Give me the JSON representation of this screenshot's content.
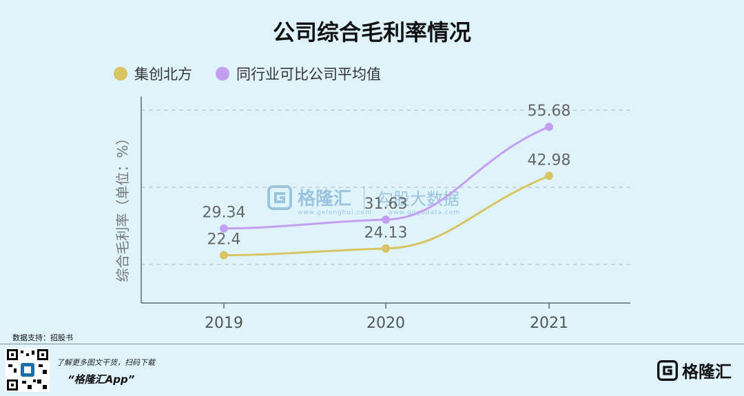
{
  "title": "公司综合毛利率情况",
  "legend": {
    "series1": "集创北方",
    "series2": "同行业可比公司平均值"
  },
  "colors": {
    "series1": "#d9c463",
    "series2": "#c49ef0",
    "grid": "#b7c3cc",
    "axis": "#7a8a96"
  },
  "chart_data": {
    "type": "line",
    "x": [
      "2019",
      "2020",
      "2021"
    ],
    "ylabel": "综合毛利率（单位：%）",
    "ylim": [
      10,
      60
    ],
    "grid": true,
    "legend_position": "top-left",
    "series": [
      {
        "name": "集创北方",
        "values": [
          22.4,
          24.13,
          42.98
        ]
      },
      {
        "name": "同行业可比公司平均值",
        "values": [
          29.34,
          31.63,
          55.68
        ]
      }
    ]
  },
  "watermark": {
    "brand": "格隆汇",
    "url": "www.gelonghui.com",
    "sub": "勾股大数据",
    "sub_url": "www.gogudata.com"
  },
  "footer": {
    "source": "数据支持：招股书",
    "promo": "了解更多图文干货，扫码下载",
    "app": "“格隆汇App”",
    "brand": "格隆汇",
    "brand_url": "www.gelonghui.com"
  }
}
